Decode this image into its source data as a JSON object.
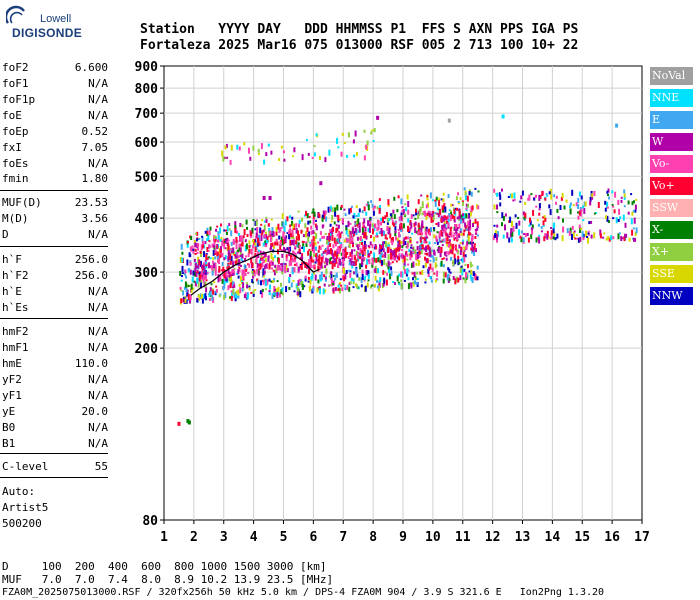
{
  "logo": {
    "line1": "Lowell",
    "line2": "DIGISONDE"
  },
  "header": {
    "line1": "Station   YYYY DAY   DDD HHMMSS P1  FFS S AXN PPS IGA PS",
    "line2": "Fortaleza 2025 Mar16 075 013000 RSF 005 2 713 100 10+ 22"
  },
  "params": [
    {
      "k": "foF2",
      "v": "6.600"
    },
    {
      "k": "foF1",
      "v": "N/A"
    },
    {
      "k": "foF1p",
      "v": "N/A"
    },
    {
      "k": "foE",
      "v": "N/A"
    },
    {
      "k": "foEp",
      "v": "0.52"
    },
    {
      "k": "fxI",
      "v": "7.05"
    },
    {
      "k": "foEs",
      "v": "N/A"
    },
    {
      "k": "fmin",
      "v": "1.80"
    },
    {
      "k": "MUF(D)",
      "v": "23.53"
    },
    {
      "k": "M(D)",
      "v": "3.56"
    },
    {
      "k": "D",
      "v": "N/A"
    },
    {
      "k": "h`F",
      "v": "256.0"
    },
    {
      "k": "h`F2",
      "v": "256.0"
    },
    {
      "k": "h`E",
      "v": "N/A"
    },
    {
      "k": "h`Es",
      "v": "N/A"
    },
    {
      "k": "hmF2",
      "v": "N/A"
    },
    {
      "k": "hmF1",
      "v": "N/A"
    },
    {
      "k": "hmE",
      "v": "110.0"
    },
    {
      "k": "yF2",
      "v": "N/A"
    },
    {
      "k": "yF1",
      "v": "N/A"
    },
    {
      "k": "yE",
      "v": "20.0"
    },
    {
      "k": "B0",
      "v": "N/A"
    },
    {
      "k": "B1",
      "v": "N/A"
    },
    {
      "k": "C-level",
      "v": "55"
    }
  ],
  "auto": {
    "line1": "Auto:",
    "line2": "Artist5",
    "line3": "500200"
  },
  "footer": {
    "d_row": "D     100  200  400  600  800 1000 1500 3000 [km]",
    "muf_row": "MUF   7.0  7.0  7.4  8.0  8.9 10.2 13.9 23.5 [MHz]",
    "file_row": "FZA0M_2025075013000.RSF / 320fx256h 50 kHz 5.0 km / DPS-4 FZA0M 904 / 3.9 S 321.6 E   Ion2Png 1.3.20"
  },
  "legend": [
    {
      "label": "NoVal",
      "color": "#a0a0a0"
    },
    {
      "label": "NNE",
      "color": "#00e0ff"
    },
    {
      "label": "E",
      "color": "#40a8f0"
    },
    {
      "label": "W",
      "color": "#b000a8"
    },
    {
      "label": "Vo-",
      "color": "#ff40b0"
    },
    {
      "label": "Vo+",
      "color": "#ff0030"
    },
    {
      "label": "SSW",
      "color": "#ffb0b0"
    },
    {
      "label": "X-",
      "color": "#008000"
    },
    {
      "label": "X+",
      "color": "#90d040"
    },
    {
      "label": "SSE",
      "color": "#d8d800"
    },
    {
      "label": "NNW",
      "color": "#0000c0"
    }
  ],
  "chart_data": {
    "type": "scatter",
    "xlim": [
      1,
      17
    ],
    "ylim": [
      80,
      900
    ],
    "xticks": [
      1,
      2,
      3,
      4,
      5,
      6,
      7,
      8,
      9,
      10,
      11,
      12,
      13,
      14,
      15,
      16,
      17
    ],
    "yticks": [
      80,
      200,
      300,
      400,
      500,
      600,
      700,
      800,
      900
    ],
    "grid": true,
    "trace": {
      "x": [
        1.9,
        2.2,
        2.6,
        3.0,
        3.4,
        3.8,
        4.2,
        4.6,
        5.0,
        5.3,
        5.6,
        5.8,
        6.0,
        6.2
      ],
      "y": [
        265,
        275,
        285,
        300,
        312,
        320,
        330,
        335,
        335,
        330,
        320,
        310,
        300,
        305
      ]
    },
    "clusters": [
      {
        "x0": 1.5,
        "x1": 11.5,
        "y0a": 258,
        "y1a": 375,
        "y0b": 290,
        "y1b": 480,
        "n": 1400,
        "palette": [
          "#ff0030",
          "#ff40b0",
          "#40a8f0",
          "#00e0ff",
          "#b000a8",
          "#90d040",
          "#d8d800",
          "#008000",
          "#0000c0"
        ]
      },
      {
        "x0": 2.0,
        "x1": 11.5,
        "y0a": 290,
        "y1a": 355,
        "y0b": 340,
        "y1b": 430,
        "n": 700,
        "palette": [
          "#b000a8",
          "#ff0030",
          "#ff40b0"
        ]
      },
      {
        "x0": 12.0,
        "x1": 16.8,
        "y0a": 360,
        "y1a": 470,
        "y0b": 360,
        "y1b": 470,
        "n": 260,
        "palette": [
          "#0000c0",
          "#00e0ff",
          "#40a8f0",
          "#b000a8",
          "#ff40b0",
          "#d8d800",
          "#ff0030",
          "#008000"
        ]
      },
      {
        "x0": 2.9,
        "x1": 8.1,
        "y0a": 540,
        "y1a": 600,
        "y0b": 560,
        "y1b": 660,
        "n": 60,
        "palette": [
          "#00e0ff",
          "#d8d800",
          "#90d040",
          "#ff40b0",
          "#b000a8"
        ]
      }
    ],
    "isolated": [
      {
        "x": 1.45,
        "y": 135,
        "c": "#ff0030"
      },
      {
        "x": 1.75,
        "y": 137,
        "c": "#008000"
      },
      {
        "x": 1.8,
        "y": 136,
        "c": "#008000"
      },
      {
        "x": 8.1,
        "y": 690,
        "c": "#b000a8"
      },
      {
        "x": 10.5,
        "y": 680,
        "c": "#a0a0a0"
      },
      {
        "x": 12.3,
        "y": 695,
        "c": "#00e0ff"
      },
      {
        "x": 16.1,
        "y": 662,
        "c": "#40a8f0"
      },
      {
        "x": 4.3,
        "y": 450,
        "c": "#b000a8"
      },
      {
        "x": 4.5,
        "y": 450,
        "c": "#b000a8"
      },
      {
        "x": 6.2,
        "y": 487,
        "c": "#b000a8"
      },
      {
        "x": 16.7,
        "y": 360,
        "c": "#b000a8"
      },
      {
        "x": 16.4,
        "y": 368,
        "c": "#b000a8"
      }
    ]
  }
}
